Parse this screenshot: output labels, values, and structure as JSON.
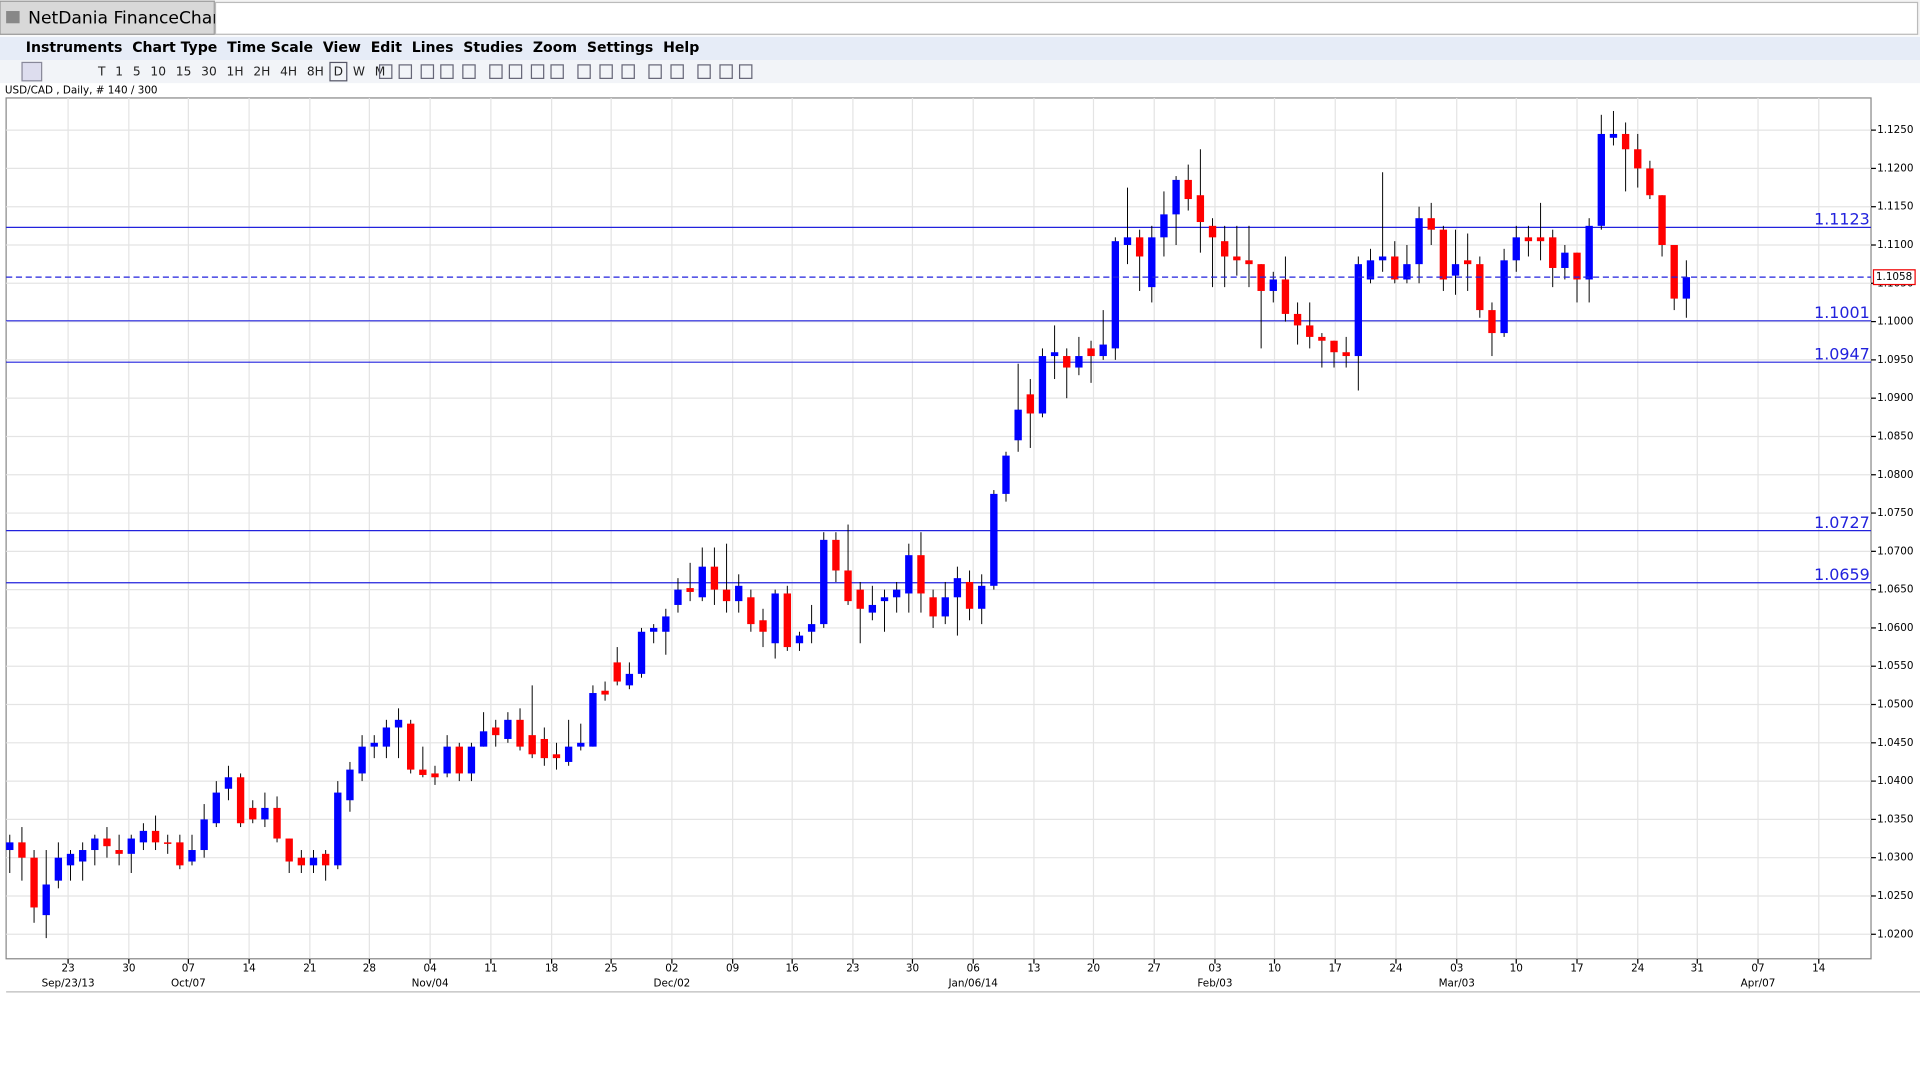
{
  "app": {
    "window_title": "NetDania FinanceChart",
    "menu": [
      "Instruments",
      "Chart Type",
      "Time Scale",
      "View",
      "Edit",
      "Lines",
      "Studies",
      "Zoom",
      "Settings",
      "Help"
    ],
    "timeframes": [
      "T",
      "1",
      "5",
      "10",
      "15",
      "30",
      "1H",
      "2H",
      "4H",
      "8H",
      "D",
      "W",
      "M"
    ]
  },
  "chart_data": {
    "type": "candlestick",
    "info": "USD/CAD , Daily, # 140 / 300",
    "up_color": "#0000ff",
    "down_color": "#ff0000",
    "open": [
      1.031,
      1.032,
      1.03,
      1.0225,
      1.027,
      1.029,
      1.0295,
      1.031,
      1.0325,
      1.031,
      1.0305,
      1.032,
      1.0335,
      1.032,
      1.032,
      1.0295,
      1.031,
      1.0345,
      1.039,
      1.0405,
      1.0365,
      1.035,
      1.0365,
      1.0325,
      1.03,
      1.029,
      1.0305,
      1.029,
      1.0375,
      1.041,
      1.0445,
      1.0445,
      1.047,
      1.0475,
      1.0415,
      1.041,
      1.041,
      1.0445,
      1.041,
      1.0445,
      1.047,
      1.0455,
      1.048,
      1.046,
      1.0455,
      1.0435,
      1.0425,
      1.0445,
      1.0445,
      1.0518,
      1.0555,
      1.0525,
      1.054,
      1.0595,
      1.0595,
      1.063,
      1.0652,
      1.064,
      1.068,
      1.065,
      1.0635,
      1.064,
      1.061,
      1.058,
      1.0645,
      1.058,
      1.0595,
      1.0605,
      1.0715,
      1.0675,
      1.065,
      1.062,
      1.0635,
      1.064,
      1.0645,
      1.0695,
      1.064,
      1.0615,
      1.064,
      1.066,
      1.0625,
      1.0655,
      1.0775,
      1.0845,
      1.0905,
      1.088,
      1.0955,
      1.0955,
      1.094,
      1.0965,
      1.0955,
      1.0965,
      1.11,
      1.111,
      1.1045,
      1.111,
      1.114,
      1.1185,
      1.1165,
      1.1125,
      1.1105,
      1.1085,
      1.108,
      1.1075,
      1.104,
      1.1055,
      1.101,
      1.0995,
      1.098,
      1.0975,
      1.096,
      1.0955,
      1.1055,
      1.108,
      1.1085,
      1.1055,
      1.1075,
      1.1135,
      1.112,
      1.106,
      1.108,
      1.1075,
      1.1015,
      1.0985,
      1.108,
      1.111,
      1.111,
      1.111,
      1.107,
      1.109,
      1.1055,
      1.1125,
      1.124,
      1.1245,
      1.1225,
      1.12,
      1.1165,
      1.11,
      1.103
    ],
    "high": [
      1.033,
      1.034,
      1.031,
      1.031,
      1.032,
      1.031,
      1.032,
      1.033,
      1.034,
      1.033,
      1.033,
      1.0345,
      1.0355,
      1.033,
      1.033,
      1.033,
      1.037,
      1.04,
      1.042,
      1.041,
      1.0375,
      1.0385,
      1.038,
      1.0325,
      1.031,
      1.031,
      1.031,
      1.04,
      1.0425,
      1.046,
      1.046,
      1.048,
      1.0495,
      1.048,
      1.0445,
      1.042,
      1.046,
      1.045,
      1.045,
      1.049,
      1.048,
      1.049,
      1.0495,
      1.0525,
      1.047,
      1.045,
      1.048,
      1.0475,
      1.0525,
      1.053,
      1.0575,
      1.0555,
      1.06,
      1.0605,
      1.0625,
      1.0665,
      1.0685,
      1.0705,
      1.0705,
      1.071,
      1.067,
      1.065,
      1.0625,
      1.065,
      1.0655,
      1.0595,
      1.063,
      1.0725,
      1.0725,
      1.0735,
      1.066,
      1.0655,
      1.065,
      1.066,
      1.071,
      1.0725,
      1.065,
      1.066,
      1.068,
      1.0675,
      1.067,
      1.078,
      1.083,
      1.0945,
      1.0925,
      1.0965,
      1.0995,
      1.0965,
      1.098,
      1.0975,
      1.1015,
      1.111,
      1.1175,
      1.112,
      1.1125,
      1.117,
      1.119,
      1.1205,
      1.1225,
      1.1135,
      1.1125,
      1.1125,
      1.1125,
      1.1075,
      1.1065,
      1.1085,
      1.1025,
      1.1025,
      1.0985,
      1.0975,
      1.098,
      1.1085,
      1.1095,
      1.1195,
      1.1105,
      1.11,
      1.115,
      1.1155,
      1.1125,
      1.112,
      1.1115,
      1.1085,
      1.1025,
      1.1095,
      1.1125,
      1.1125,
      1.1155,
      1.112,
      1.11,
      1.109,
      1.1135,
      1.127,
      1.1275,
      1.126,
      1.1245,
      1.121,
      1.1165,
      1.11,
      1.108
    ],
    "low": [
      1.028,
      1.027,
      1.0215,
      1.0195,
      1.026,
      1.027,
      1.027,
      1.029,
      1.03,
      1.029,
      1.028,
      1.031,
      1.031,
      1.0305,
      1.0285,
      1.029,
      1.03,
      1.034,
      1.0375,
      1.034,
      1.0345,
      1.034,
      1.032,
      1.028,
      1.028,
      1.028,
      1.027,
      1.0285,
      1.036,
      1.04,
      1.043,
      1.043,
      1.043,
      1.041,
      1.0405,
      1.0395,
      1.0405,
      1.04,
      1.04,
      1.0445,
      1.0445,
      1.045,
      1.044,
      1.043,
      1.042,
      1.0415,
      1.042,
      1.044,
      1.0445,
      1.0505,
      1.0525,
      1.052,
      1.0535,
      1.058,
      1.0565,
      1.062,
      1.0635,
      1.0635,
      1.063,
      1.062,
      1.062,
      1.0595,
      1.0575,
      1.056,
      1.057,
      1.057,
      1.058,
      1.06,
      1.066,
      1.063,
      1.058,
      1.061,
      1.0595,
      1.062,
      1.062,
      1.062,
      1.06,
      1.0605,
      1.059,
      1.061,
      1.0605,
      1.065,
      1.0765,
      1.083,
      1.0835,
      1.0875,
      1.0925,
      1.09,
      1.093,
      1.092,
      1.095,
      1.095,
      1.1075,
      1.104,
      1.1025,
      1.1085,
      1.11,
      1.1145,
      1.109,
      1.1045,
      1.1045,
      1.106,
      1.1045,
      1.0965,
      1.1025,
      1.1,
      1.097,
      1.0965,
      1.094,
      1.094,
      1.094,
      1.091,
      1.105,
      1.1065,
      1.105,
      1.105,
      1.105,
      1.11,
      1.104,
      1.1035,
      1.104,
      1.1005,
      1.0955,
      1.098,
      1.1065,
      1.1085,
      1.108,
      1.1045,
      1.1055,
      1.1025,
      1.1025,
      1.112,
      1.123,
      1.117,
      1.1175,
      1.116,
      1.1085,
      1.1015,
      1.1005
    ],
    "close": [
      1.032,
      1.03,
      1.0235,
      1.0265,
      1.03,
      1.0305,
      1.031,
      1.0325,
      1.0315,
      1.0305,
      1.0325,
      1.0335,
      1.032,
      1.0318,
      1.029,
      1.031,
      1.035,
      1.0385,
      1.0405,
      1.0345,
      1.035,
      1.0365,
      1.0325,
      1.0295,
      1.029,
      1.03,
      1.029,
      1.0385,
      1.0415,
      1.0445,
      1.045,
      1.047,
      1.048,
      1.0415,
      1.0408,
      1.0405,
      1.0445,
      1.041,
      1.0445,
      1.0465,
      1.046,
      1.048,
      1.0445,
      1.0435,
      1.043,
      1.043,
      1.0445,
      1.045,
      1.0515,
      1.0513,
      1.053,
      1.054,
      1.0595,
      1.06,
      1.0615,
      1.065,
      1.0647,
      1.068,
      1.065,
      1.0635,
      1.0655,
      1.0605,
      1.0595,
      1.0645,
      1.0575,
      1.059,
      1.0605,
      1.0715,
      1.0675,
      1.0635,
      1.0625,
      1.063,
      1.064,
      1.065,
      1.0695,
      1.0645,
      1.0615,
      1.064,
      1.0665,
      1.0625,
      1.0655,
      1.0775,
      1.0825,
      1.0885,
      1.088,
      1.0955,
      1.096,
      1.094,
      1.0955,
      1.0955,
      1.097,
      1.1105,
      1.111,
      1.1085,
      1.111,
      1.114,
      1.1185,
      1.116,
      1.113,
      1.111,
      1.1085,
      1.108,
      1.1075,
      1.104,
      1.1055,
      1.101,
      1.0995,
      1.098,
      1.0975,
      1.096,
      1.0955,
      1.1075,
      1.108,
      1.1085,
      1.1055,
      1.1075,
      1.1135,
      1.112,
      1.1055,
      1.1075,
      1.1075,
      1.1015,
      1.0985,
      1.108,
      1.111,
      1.1105,
      1.1105,
      1.107,
      1.109,
      1.1055,
      1.1125,
      1.1245,
      1.1245,
      1.1225,
      1.12,
      1.1165,
      1.11,
      1.103,
      1.1058
    ],
    "ylim": [
      1.0168,
      1.1292
    ],
    "yticks": [
      {
        "value": 1.02,
        "label": "1.0200"
      },
      {
        "value": 1.025,
        "label": "1.0250"
      },
      {
        "value": 1.03,
        "label": "1.0300"
      },
      {
        "value": 1.035,
        "label": "1.0350"
      },
      {
        "value": 1.04,
        "label": "1.0400"
      },
      {
        "value": 1.045,
        "label": "1.0450"
      },
      {
        "value": 1.05,
        "label": "1.0500"
      },
      {
        "value": 1.055,
        "label": "1.0550"
      },
      {
        "value": 1.06,
        "label": "1.0600"
      },
      {
        "value": 1.065,
        "label": "1.0650"
      },
      {
        "value": 1.07,
        "label": "1.0700"
      },
      {
        "value": 1.075,
        "label": "1.0750"
      },
      {
        "value": 1.08,
        "label": "1.0800"
      },
      {
        "value": 1.085,
        "label": "1.0850"
      },
      {
        "value": 1.09,
        "label": "1.0900"
      },
      {
        "value": 1.095,
        "label": "1.0950"
      },
      {
        "value": 1.1,
        "label": "1.1000"
      },
      {
        "value": 1.105,
        "label": "1.1050"
      },
      {
        "value": 1.11,
        "label": "1.1100"
      },
      {
        "value": 1.115,
        "label": "1.1150"
      },
      {
        "value": 1.12,
        "label": "1.1200"
      },
      {
        "value": 1.125,
        "label": "1.1250"
      }
    ],
    "xlim": [
      -0.3,
      153.2
    ],
    "xticks": [
      {
        "value": 4.8,
        "label": "23"
      },
      {
        "value": 9.8,
        "label": "30"
      },
      {
        "value": 14.7,
        "label": "07"
      },
      {
        "value": 19.7,
        "label": "14"
      },
      {
        "value": 24.7,
        "label": "21"
      },
      {
        "value": 29.6,
        "label": "28"
      },
      {
        "value": 34.6,
        "label": "04"
      },
      {
        "value": 39.6,
        "label": "11"
      },
      {
        "value": 44.6,
        "label": "18"
      },
      {
        "value": 49.5,
        "label": "25"
      },
      {
        "value": 54.5,
        "label": "02"
      },
      {
        "value": 59.5,
        "label": "09"
      },
      {
        "value": 64.4,
        "label": "16"
      },
      {
        "value": 69.4,
        "label": "23"
      },
      {
        "value": 74.3,
        "label": "30"
      },
      {
        "value": 79.3,
        "label": "06"
      },
      {
        "value": 84.3,
        "label": "13"
      },
      {
        "value": 89.2,
        "label": "20"
      },
      {
        "value": 94.2,
        "label": "27"
      },
      {
        "value": 99.2,
        "label": "03"
      },
      {
        "value": 104.1,
        "label": "10"
      },
      {
        "value": 109.1,
        "label": "17"
      },
      {
        "value": 114.1,
        "label": "24"
      },
      {
        "value": 119.1,
        "label": "03"
      },
      {
        "value": 124.0,
        "label": "10"
      },
      {
        "value": 129.0,
        "label": "17"
      },
      {
        "value": 134.0,
        "label": "24"
      },
      {
        "value": 138.9,
        "label": "31"
      },
      {
        "value": 143.9,
        "label": "07"
      },
      {
        "value": 148.9,
        "label": "14"
      }
    ],
    "period_labels": [
      {
        "value": 4.8,
        "label": "Sep/23/13"
      },
      {
        "value": 14.7,
        "label": "Oct/07"
      },
      {
        "value": 34.6,
        "label": "Nov/04"
      },
      {
        "value": 54.5,
        "label": "Dec/02"
      },
      {
        "value": 79.3,
        "label": "Jan/06/14"
      },
      {
        "value": 99.2,
        "label": "Feb/03"
      },
      {
        "value": 119.1,
        "label": "Mar/03"
      },
      {
        "value": 143.9,
        "label": "Apr/07"
      }
    ],
    "levels": [
      1.1123,
      1.1001,
      1.0947,
      1.0727,
      1.0659
    ],
    "level_color": "#2222dd",
    "last_price": 1.1058,
    "grid": true
  }
}
